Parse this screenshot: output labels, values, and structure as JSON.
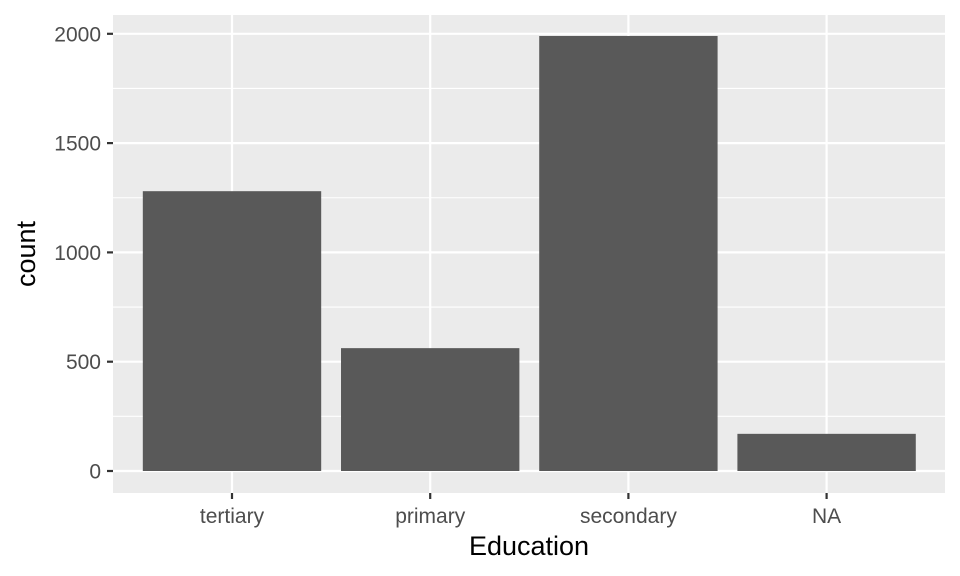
{
  "chart_data": {
    "type": "bar",
    "categories": [
      "tertiary",
      "primary",
      "secondary",
      "NA"
    ],
    "values": [
      1280,
      562,
      1990,
      170
    ],
    "title": "",
    "xlabel": "Education",
    "ylabel": "count",
    "ylim": [
      0,
      2090
    ],
    "yticks": [
      0,
      500,
      1000,
      1500,
      2000
    ],
    "ytick_labels": [
      "0",
      "500",
      "1000",
      "1500",
      "2000"
    ],
    "grid": true,
    "colors": {
      "panel": "#ebebeb",
      "grid": "#ffffff",
      "bar": "#595959",
      "tick": "#333333"
    }
  }
}
